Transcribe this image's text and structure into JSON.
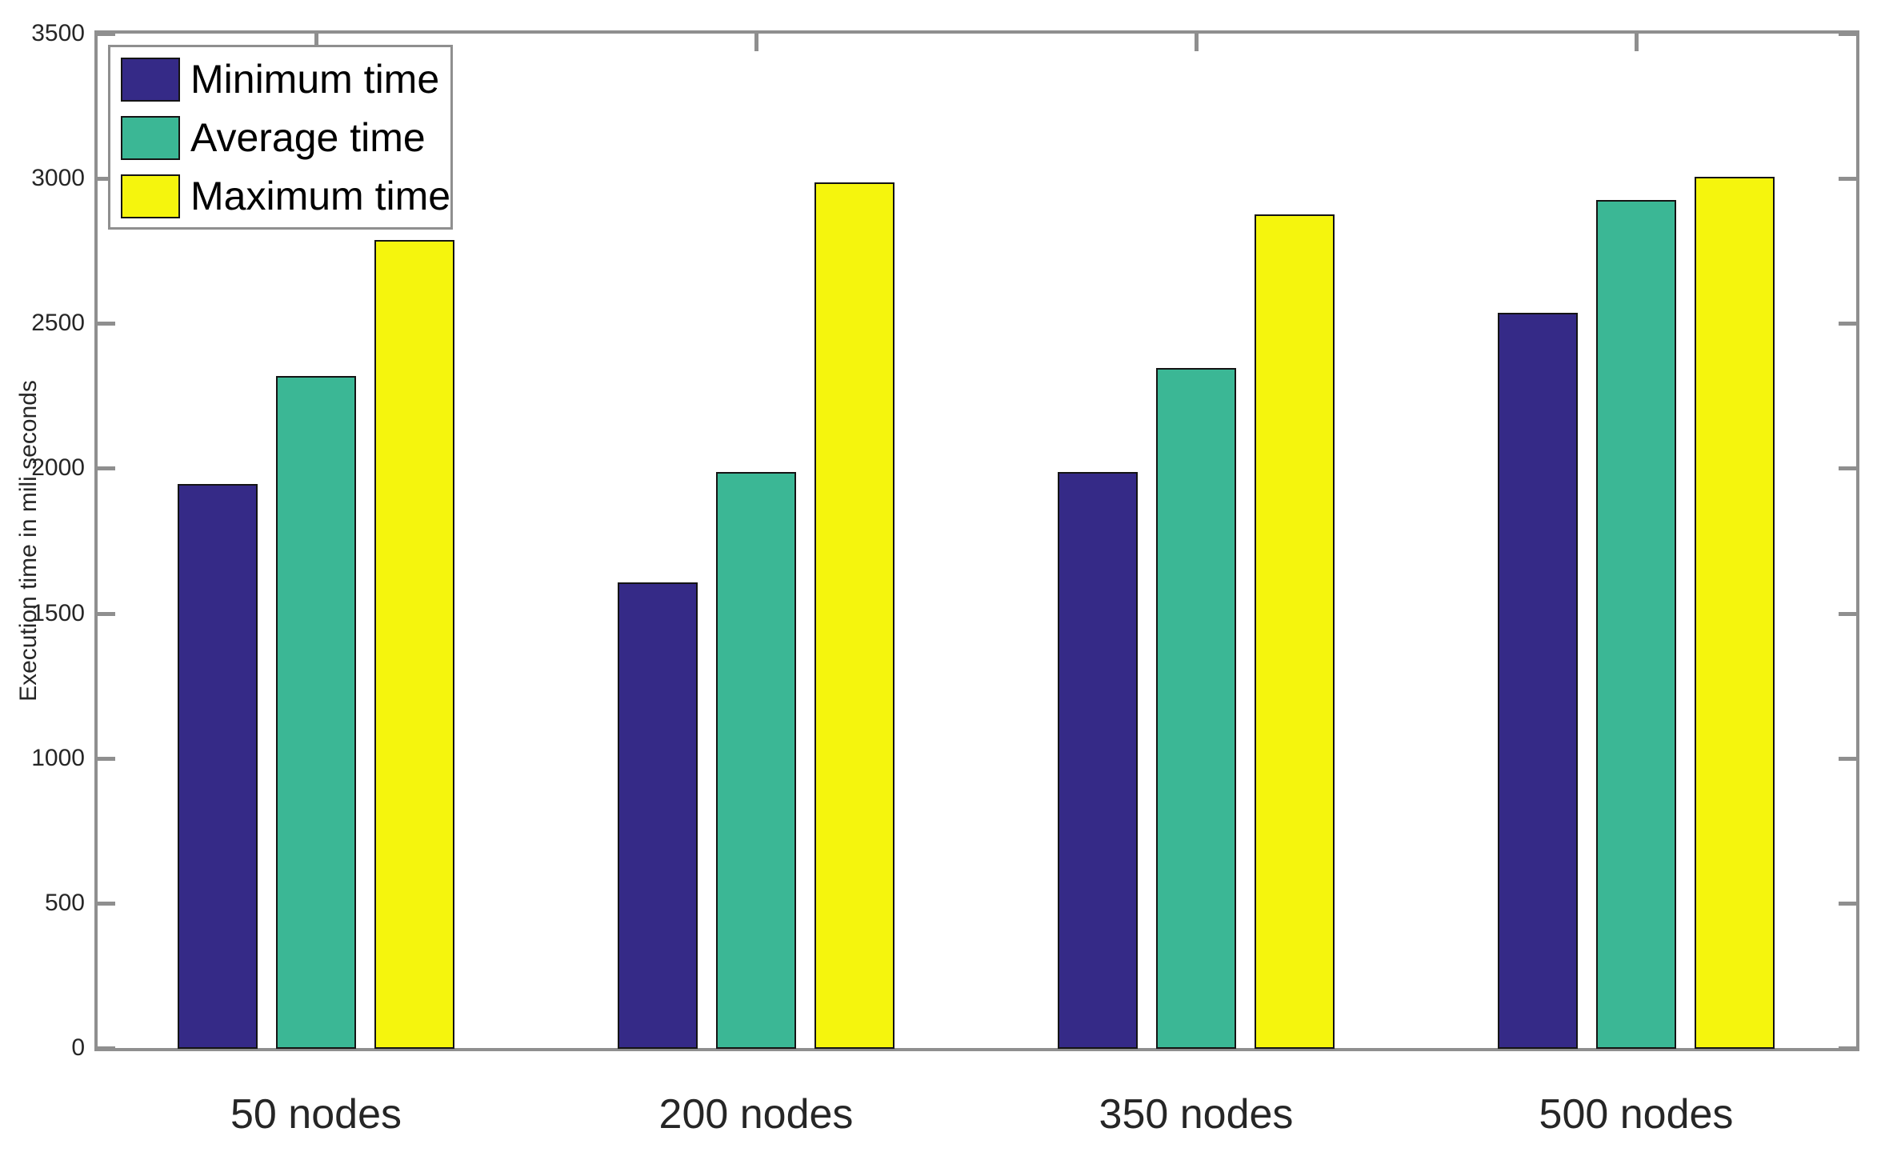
{
  "chart_data": {
    "type": "bar",
    "title": "",
    "categories": [
      "50 nodes",
      "200 nodes",
      "350 nodes",
      "500 nodes"
    ],
    "series": [
      {
        "name": "Minimum time",
        "color": "#352A87",
        "values": [
          1950,
          1610,
          1990,
          2540
        ]
      },
      {
        "name": "Average time",
        "color": "#3BB795",
        "values": [
          2320,
          1990,
          2350,
          2930
        ]
      },
      {
        "name": "Maximum time",
        "color": "#F5F50D",
        "values": [
          2790,
          2990,
          2880,
          3010
        ]
      }
    ],
    "xlabel": "",
    "ylabel": "Execution time in mili seconds",
    "ylim": [
      0,
      3500
    ],
    "yticks": [
      0,
      500,
      1000,
      1500,
      2000,
      2500,
      3000,
      3500
    ],
    "grid": false,
    "legend_position": "top-left",
    "colors": {
      "axis": "#8F8F8F",
      "tick_label": "#262626",
      "bar_edge": "#141414",
      "background": "#FFFFFF"
    }
  }
}
